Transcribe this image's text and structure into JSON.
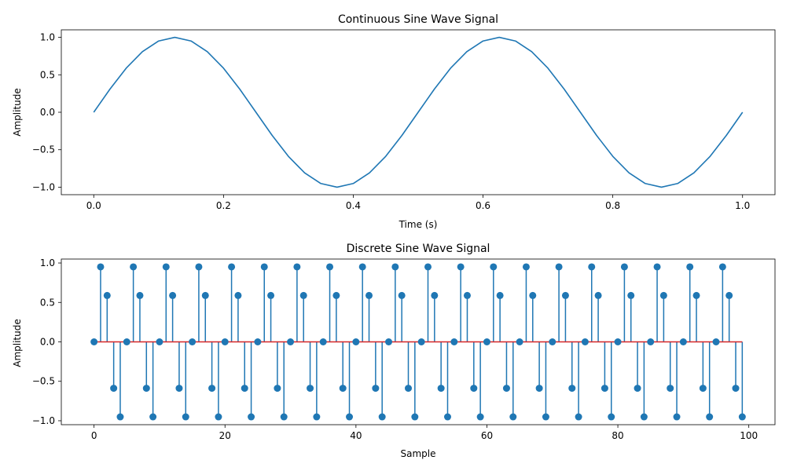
{
  "colors": {
    "series": "#1f77b4",
    "baseline": "#d62728",
    "axes": "#000000",
    "background": "#ffffff"
  },
  "chart_data": [
    {
      "type": "line",
      "title": "Continuous Sine Wave Signal",
      "xlabel": "Time (s)",
      "ylabel": "Amplitude",
      "xlim": [
        -0.05,
        1.05
      ],
      "ylim": [
        -1.1,
        1.1
      ],
      "xticks": [
        0.0,
        0.2,
        0.4,
        0.6,
        0.8,
        1.0
      ],
      "xtick_labels": [
        "0.0",
        "0.2",
        "0.4",
        "0.6",
        "0.8",
        "1.0"
      ],
      "yticks": [
        -1.0,
        -0.5,
        0.0,
        0.5,
        1.0
      ],
      "ytick_labels": [
        "−1.0",
        "−0.5",
        "0.0",
        "0.5",
        "1.0"
      ],
      "grid": false,
      "series": [
        {
          "x": [
            0,
            0.025,
            0.05,
            0.075,
            0.1,
            0.125,
            0.15,
            0.175,
            0.2,
            0.225,
            0.25,
            0.275,
            0.3,
            0.325,
            0.35,
            0.375,
            0.4,
            0.425,
            0.45,
            0.475,
            0.5,
            0.525,
            0.55,
            0.575,
            0.6,
            0.625,
            0.65,
            0.675,
            0.7,
            0.725,
            0.75,
            0.775,
            0.8,
            0.825,
            0.85,
            0.875,
            0.9,
            0.925,
            0.95,
            0.975,
            1.0
          ],
          "values": [
            0,
            0.309,
            0.588,
            0.809,
            0.951,
            1.0,
            0.951,
            0.809,
            0.588,
            0.309,
            0,
            -0.309,
            -0.588,
            -0.809,
            -0.951,
            -1.0,
            -0.951,
            -0.809,
            -0.588,
            -0.309,
            0,
            0.309,
            0.588,
            0.809,
            0.951,
            1.0,
            0.951,
            0.809,
            0.588,
            0.309,
            0,
            -0.309,
            -0.588,
            -0.809,
            -0.951,
            -1.0,
            -0.951,
            -0.809,
            -0.588,
            -0.309,
            0
          ]
        }
      ]
    },
    {
      "type": "stem",
      "title": "Discrete Sine Wave Signal",
      "xlabel": "Sample",
      "ylabel": "Amplitude",
      "xlim": [
        -5,
        104
      ],
      "ylim": [
        -1.05,
        1.05
      ],
      "xticks": [
        0,
        20,
        40,
        60,
        80,
        100
      ],
      "xtick_labels": [
        "0",
        "20",
        "40",
        "60",
        "80",
        "100"
      ],
      "yticks": [
        -1.0,
        -0.5,
        0.0,
        0.5,
        1.0
      ],
      "ytick_labels": [
        "−1.0",
        "−0.5",
        "0.0",
        "0.5",
        "1.0"
      ],
      "grid": false,
      "baseline": 0,
      "x_start": 0,
      "values": [
        0,
        0.951,
        0.588,
        -0.588,
        -0.951,
        0,
        0.951,
        0.588,
        -0.588,
        -0.951,
        0,
        0.951,
        0.588,
        -0.588,
        -0.951,
        0,
        0.951,
        0.588,
        -0.588,
        -0.951,
        0,
        0.951,
        0.588,
        -0.588,
        -0.951,
        0,
        0.951,
        0.588,
        -0.588,
        -0.951,
        0,
        0.951,
        0.588,
        -0.588,
        -0.951,
        0,
        0.951,
        0.588,
        -0.588,
        -0.951,
        0,
        0.951,
        0.588,
        -0.588,
        -0.951,
        0,
        0.951,
        0.588,
        -0.588,
        -0.951,
        0,
        0.951,
        0.588,
        -0.588,
        -0.951,
        0,
        0.951,
        0.588,
        -0.588,
        -0.951,
        0,
        0.951,
        0.588,
        -0.588,
        -0.951,
        0,
        0.951,
        0.588,
        -0.588,
        -0.951,
        0,
        0.951,
        0.588,
        -0.588,
        -0.951,
        0,
        0.951,
        0.588,
        -0.588,
        -0.951,
        0,
        0.951,
        0.588,
        -0.588,
        -0.951,
        0,
        0.951,
        0.588,
        -0.588,
        -0.951,
        0,
        0.951,
        0.588,
        -0.588,
        -0.951,
        0,
        0.951,
        0.588,
        -0.588,
        -0.951
      ]
    }
  ]
}
